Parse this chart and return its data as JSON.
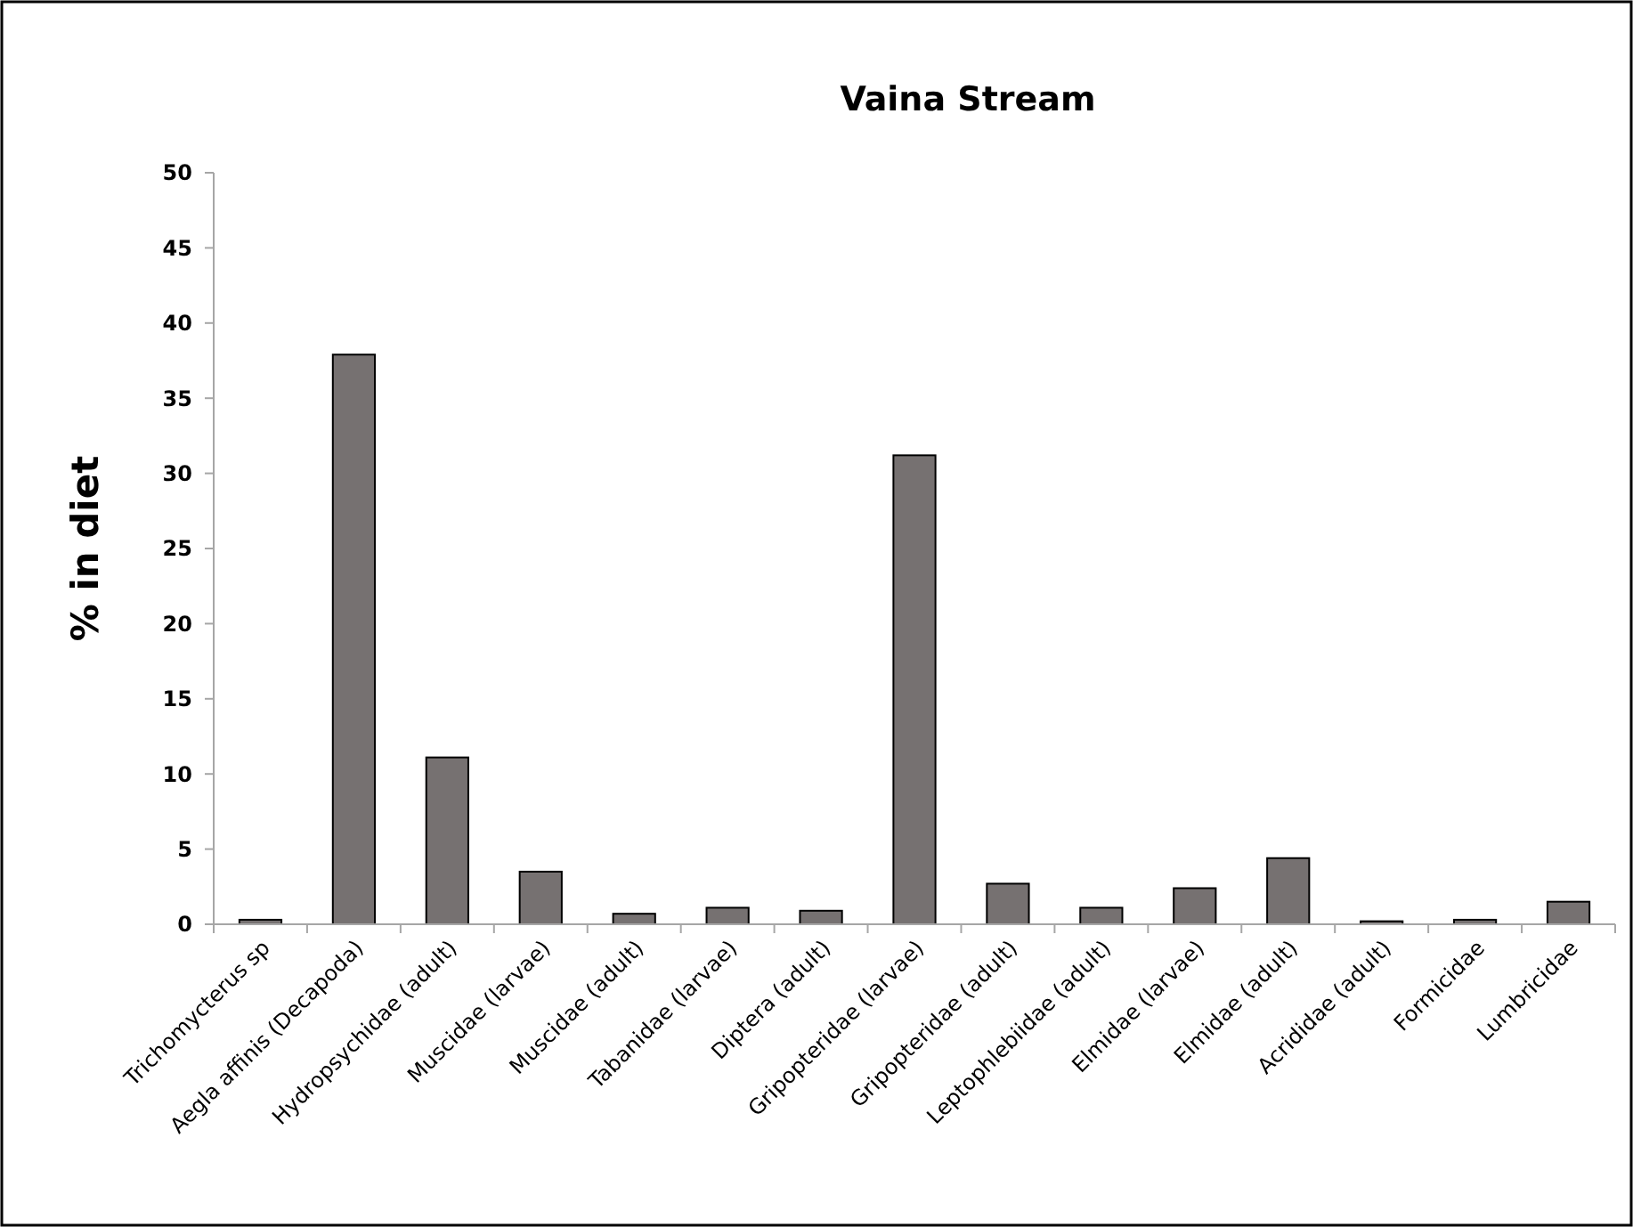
{
  "chart_data": {
    "type": "bar",
    "title": "Vaina Stream",
    "ylabel": "% in diet",
    "categories": [
      "Trichomycterus sp",
      "Aegla affinis (Decapoda)",
      "Hydropsychidae (adult)",
      "Muscidae (larvae)",
      "Muscidae (adult)",
      "Tabanidae (larvae)",
      "Diptera (adult)",
      "Gripopteridae (larvae)",
      "Gripopteridae (adult)",
      "Leptophlebiidae (adult)",
      "Elmidae (larvae)",
      "Elmidae (adult)",
      "Acrididae (adult)",
      "Formicidae",
      "Lumbricidae"
    ],
    "values": [
      0.3,
      37.9,
      11.1,
      3.5,
      0.7,
      1.1,
      0.9,
      31.2,
      2.7,
      1.1,
      2.4,
      4.4,
      0.2,
      0.3,
      1.5
    ],
    "color": "#767171",
    "ylim": [
      0,
      50
    ],
    "yticks": [
      0,
      5,
      10,
      15,
      20,
      25,
      30,
      35,
      40,
      45,
      50
    ],
    "grid": false
  }
}
